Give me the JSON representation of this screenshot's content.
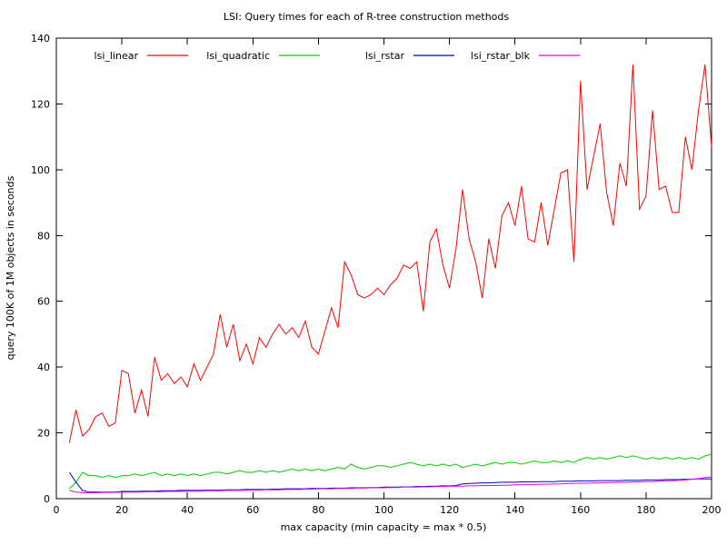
{
  "chart_data": {
    "type": "line",
    "title": "LSI: Query times for each of R-tree construction methods",
    "xlabel": "max capacity (min capacity = max * 0.5)",
    "ylabel": "query 100K of 1M objects in seconds",
    "xlim": [
      0,
      200
    ],
    "ylim": [
      0,
      140
    ],
    "xticks": [
      0,
      20,
      40,
      60,
      80,
      100,
      120,
      140,
      160,
      180,
      200
    ],
    "yticks": [
      0,
      20,
      40,
      60,
      80,
      100,
      120,
      140
    ],
    "grid": false,
    "legend_position": "top-inside",
    "x": [
      4,
      6,
      8,
      10,
      12,
      14,
      16,
      18,
      20,
      22,
      24,
      26,
      28,
      30,
      32,
      34,
      36,
      38,
      40,
      42,
      44,
      46,
      48,
      50,
      52,
      54,
      56,
      58,
      60,
      62,
      64,
      66,
      68,
      70,
      72,
      74,
      76,
      78,
      80,
      82,
      84,
      86,
      88,
      90,
      92,
      94,
      96,
      98,
      100,
      102,
      104,
      106,
      108,
      110,
      112,
      114,
      116,
      118,
      120,
      122,
      124,
      126,
      128,
      130,
      132,
      134,
      136,
      138,
      140,
      142,
      144,
      146,
      148,
      150,
      152,
      154,
      156,
      158,
      160,
      162,
      164,
      166,
      168,
      170,
      172,
      174,
      176,
      178,
      180,
      182,
      184,
      186,
      188,
      190,
      192,
      194,
      196,
      198,
      200
    ],
    "series": [
      {
        "name": "lsi_linear",
        "color": "#ff0000",
        "values": [
          17,
          27,
          19,
          21,
          25,
          26,
          22,
          23,
          39,
          38,
          26,
          33,
          25,
          43,
          36,
          38,
          35,
          37,
          34,
          41,
          36,
          40,
          44,
          56,
          46,
          53,
          42,
          47,
          41,
          49,
          46,
          50,
          53,
          50,
          52,
          49,
          54,
          46,
          44,
          51,
          58,
          52,
          72,
          68,
          62,
          61,
          62,
          64,
          62,
          65,
          67,
          71,
          70,
          72,
          57,
          78,
          82,
          71,
          64,
          76,
          94,
          79,
          72,
          61,
          79,
          70,
          86,
          90,
          83,
          95,
          79,
          78,
          90,
          77,
          88,
          99,
          100,
          72,
          127,
          94,
          104,
          114,
          93,
          83,
          102,
          95,
          132,
          88,
          92,
          118,
          94,
          95,
          87,
          87,
          110,
          100,
          118,
          132,
          107
        ]
      },
      {
        "name": "lsi_quadratic",
        "color": "#00cc00",
        "values": [
          3,
          5,
          8,
          7,
          7,
          6.5,
          7,
          6.5,
          7,
          7,
          7.5,
          7,
          7.5,
          8,
          7,
          7.5,
          7,
          7.5,
          7,
          7.5,
          7,
          7.5,
          8,
          8,
          7.5,
          8,
          8.5,
          8,
          8,
          8.5,
          8,
          8.5,
          8,
          8.5,
          9,
          8.5,
          9,
          8.5,
          9,
          8.5,
          9,
          9.5,
          9,
          10.5,
          9.5,
          9,
          9.5,
          10,
          10,
          9.5,
          10,
          10.5,
          11,
          10.5,
          10,
          10.5,
          10,
          10.5,
          10,
          10.5,
          9.5,
          10,
          10.5,
          10,
          10.5,
          11,
          10.5,
          11,
          11,
          10.5,
          11,
          11.5,
          11,
          11,
          11.5,
          11,
          11.5,
          11,
          12,
          12.5,
          12,
          12.5,
          12,
          12.5,
          13,
          12.5,
          13,
          12.5,
          12,
          12.5,
          12,
          12.5,
          12,
          12.5,
          12,
          12.5,
          12,
          13,
          13.5
        ]
      },
      {
        "name": "lsi_rstar",
        "color": "#0000cc",
        "values": [
          8,
          5,
          2.5,
          2,
          2,
          2,
          2,
          2,
          2.2,
          2.2,
          2.2,
          2.3,
          2.3,
          2.3,
          2.4,
          2.4,
          2.4,
          2.5,
          2.5,
          2.5,
          2.5,
          2.6,
          2.6,
          2.6,
          2.7,
          2.7,
          2.7,
          2.8,
          2.8,
          2.8,
          2.8,
          2.9,
          2.9,
          3,
          3,
          3,
          3,
          3.1,
          3.1,
          3.1,
          3.2,
          3.2,
          3.2,
          3.3,
          3.3,
          3.3,
          3.4,
          3.4,
          3.5,
          3.5,
          3.5,
          3.6,
          3.6,
          3.7,
          3.7,
          3.8,
          3.8,
          3.9,
          3.9,
          4,
          4.5,
          4.6,
          4.7,
          4.8,
          4.8,
          4.9,
          5,
          5,
          5,
          5.1,
          5.1,
          5.1,
          5.2,
          5.2,
          5.2,
          5.3,
          5.3,
          5.3,
          5.4,
          5.4,
          5.4,
          5.5,
          5.5,
          5.5,
          5.5,
          5.6,
          5.6,
          5.6,
          5.7,
          5.7,
          5.7,
          5.8,
          5.8,
          5.8,
          5.9,
          5.9,
          6,
          6,
          6
        ]
      },
      {
        "name": "lsi_rstar_blk",
        "color": "#ee00ee",
        "values": [
          2.5,
          2,
          1.8,
          1.8,
          1.8,
          1.9,
          1.9,
          1.9,
          2,
          2,
          2,
          2,
          2.1,
          2.1,
          2.1,
          2.2,
          2.2,
          2.2,
          2.3,
          2.3,
          2.3,
          2.4,
          2.4,
          2.4,
          2.5,
          2.5,
          2.5,
          2.6,
          2.6,
          2.6,
          2.7,
          2.7,
          2.7,
          2.8,
          2.8,
          2.8,
          2.9,
          2.9,
          3,
          3,
          3,
          3.1,
          3.1,
          3.1,
          3.2,
          3.2,
          3.3,
          3.3,
          3.3,
          3.4,
          3.4,
          3.5,
          3.5,
          3.5,
          3.6,
          3.6,
          3.7,
          3.7,
          3.8,
          3.8,
          3.8,
          3.9,
          3.9,
          4,
          4,
          4,
          4.1,
          4.1,
          4.2,
          4.2,
          4.3,
          4.3,
          4.4,
          4.4,
          4.5,
          4.5,
          4.6,
          4.6,
          4.7,
          4.7,
          4.8,
          4.8,
          4.9,
          4.9,
          5,
          5,
          5.1,
          5.1,
          5.2,
          5.2,
          5.3,
          5.4,
          5.5,
          5.6,
          5.7,
          5.9,
          6.1,
          6.4,
          6.6
        ]
      }
    ]
  }
}
